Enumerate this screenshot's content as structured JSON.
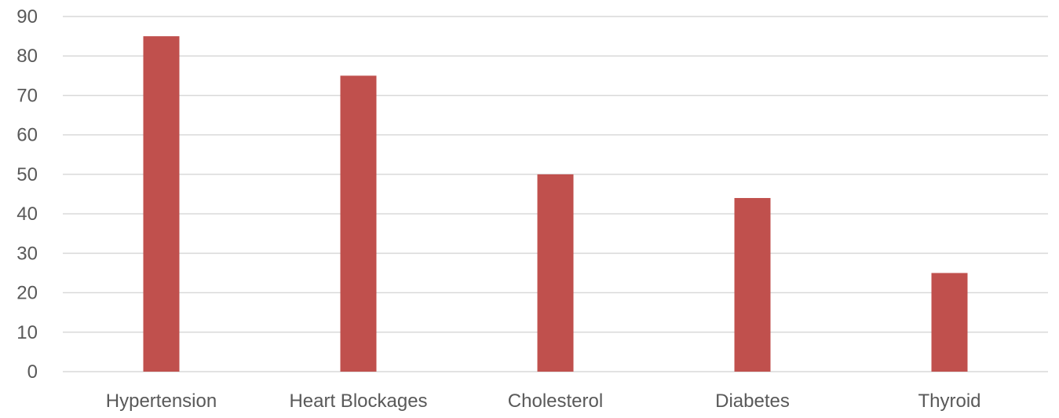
{
  "chart_data": {
    "type": "bar",
    "title": "",
    "xlabel": "",
    "ylabel": "",
    "categories": [
      "Hypertension",
      "Heart Blockages",
      "Cholesterol",
      "Diabetes",
      "Thyroid"
    ],
    "series": [
      {
        "values": [
          85,
          75,
          50,
          44,
          25
        ]
      }
    ],
    "ylim": [
      0,
      90
    ],
    "y_ticks": [
      0,
      10,
      20,
      30,
      40,
      50,
      60,
      70,
      80,
      90
    ],
    "grid": true,
    "legend": "none",
    "colors": {
      "bar": "#c0504d",
      "grid": "#d9d9d9",
      "text": "#595959"
    }
  }
}
